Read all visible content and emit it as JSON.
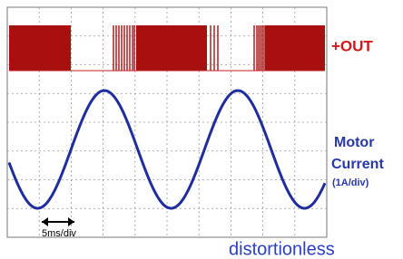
{
  "labels": {
    "out": "+OUT",
    "current_line1": "Motor",
    "current_line2": "Current",
    "current_scale": "(1A/div)",
    "time_scale": "5ms/div"
  },
  "caption": "distortionless"
}
